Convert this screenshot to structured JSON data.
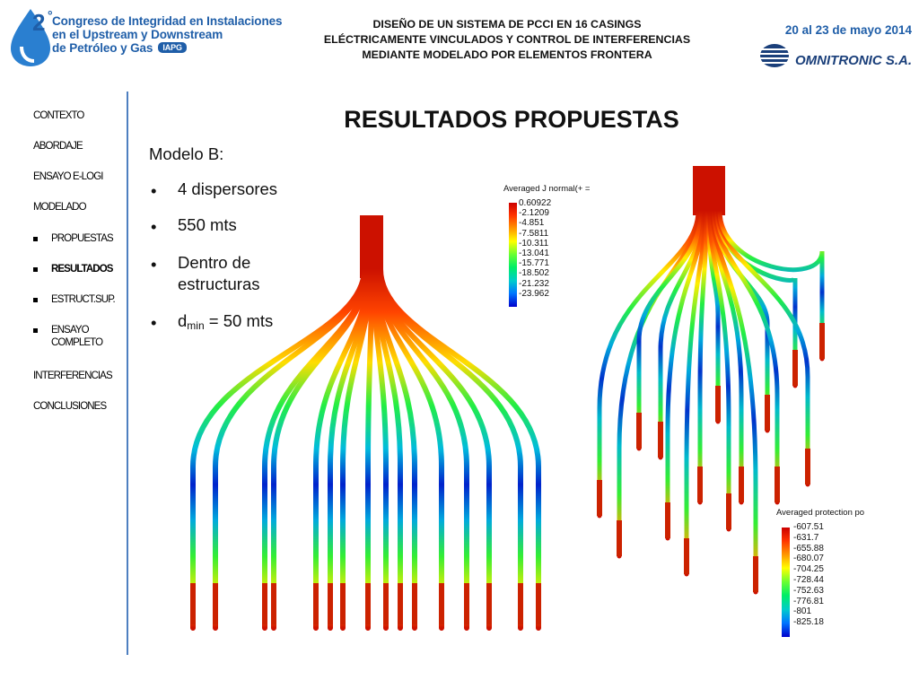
{
  "header": {
    "logo_number": "2",
    "logo_superscript": "°",
    "logo_line1": "Congreso de Integridad en Instalaciones",
    "logo_line2": "en el Upstream y Downstream",
    "logo_line3": "de Petróleo y Gas",
    "logo_badge": "IAPG",
    "title_lines": [
      "DISEÑO DE UN SISTEMA DE PCCI EN 16 CASINGS",
      "ELÉCTRICAMENTE VINCULADOS Y CONTROL DE INTERFERENCIAS",
      "MEDIANTE MODELADO POR ELEMENTOS FRONTERA"
    ],
    "date": "20 al 23 de mayo 2014",
    "company": "OMNITRONIC S.A."
  },
  "sidebar": {
    "items": [
      {
        "label": "CONTEXTO"
      },
      {
        "label": "ABORDAJE"
      },
      {
        "label": "ENSAYO E-LOGI"
      },
      {
        "label": "MODELADO"
      },
      {
        "label": "PROPUESTAS"
      },
      {
        "label": "RESULTADOS"
      },
      {
        "label": "ESTRUCT.SUP."
      },
      {
        "label": "ENSAYO COMPLETO"
      },
      {
        "label": "INTERFERENCIAS"
      },
      {
        "label": "CONCLUSIONES"
      }
    ],
    "active": "RESULTADOS"
  },
  "main": {
    "title": "RESULTADOS PROPUESTAS",
    "model_label": "Modelo B:",
    "bullets": [
      "4 dispersores",
      "550 mts",
      "Dentro de estructuras"
    ],
    "dmin": {
      "symbol": "d",
      "subscript": "min",
      "value": " = 50 mts"
    }
  },
  "legend_current": {
    "title": "Averaged J normal(+ =",
    "values": [
      "0.60922",
      "-2.1209",
      "-4.851",
      "-7.5811",
      "-10.311",
      "-13.041",
      "-15.771",
      "-18.502",
      "-21.232",
      "-23.962"
    ]
  },
  "legend_protection": {
    "title": "Averaged protection po",
    "values": [
      "-607.51",
      "-631.7",
      "-655.88",
      "-680.07",
      "-704.25",
      "-728.44",
      "-752.63",
      "-776.81",
      "-801",
      "-825.18"
    ]
  },
  "colors": {
    "accent": "#1f5ea8",
    "divider": "#4e7fc0",
    "scale": [
      "#cc0000",
      "#ff3300",
      "#ff9900",
      "#ffff00",
      "#66ff33",
      "#00ee66",
      "#00cccc",
      "#0077ff",
      "#0000cc"
    ]
  }
}
